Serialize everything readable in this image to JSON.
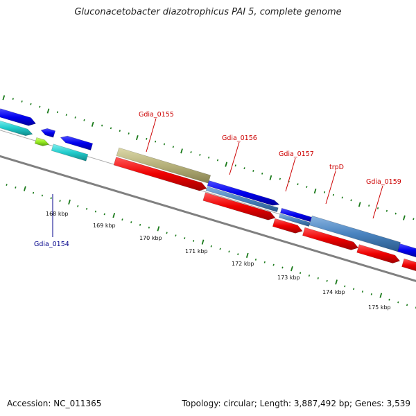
{
  "map": {
    "title": "Gluconacetobacter diazotrophicus PAI 5, complete genome",
    "accession": "Accession: NC_011365",
    "topology": "Topology: circular; Length: 3,887,492 bp; Genes: 3,539"
  },
  "scale_labels": [
    "168 kbp",
    "169 kbp",
    "170 kbp",
    "171 kbp",
    "172 kbp",
    "173 kbp",
    "174 kbp",
    "175 kbp"
  ],
  "gene_labels": [
    {
      "name": "Gdia_0154",
      "color": "#00008b"
    },
    {
      "name": "Gdia_0155",
      "color": "#cc0000"
    },
    {
      "name": "Gdia_0156",
      "color": "#cc0000"
    },
    {
      "name": "Gdia_0157",
      "color": "#cc0000"
    },
    {
      "name": "trpD",
      "color": "#cc0000"
    },
    {
      "name": "Gdia_0159",
      "color": "#cc0000"
    }
  ],
  "colors": {
    "forward_cds": "#0000ee",
    "reverse_cds": "#ee0000",
    "backbone": "#808080",
    "tick_mark": "#1a7a1a",
    "cyan_feature": "#22cccc",
    "olive_feature": "#b5b07a",
    "steel_feature": "#4a84c0",
    "lime_feature": "#99ee22"
  }
}
